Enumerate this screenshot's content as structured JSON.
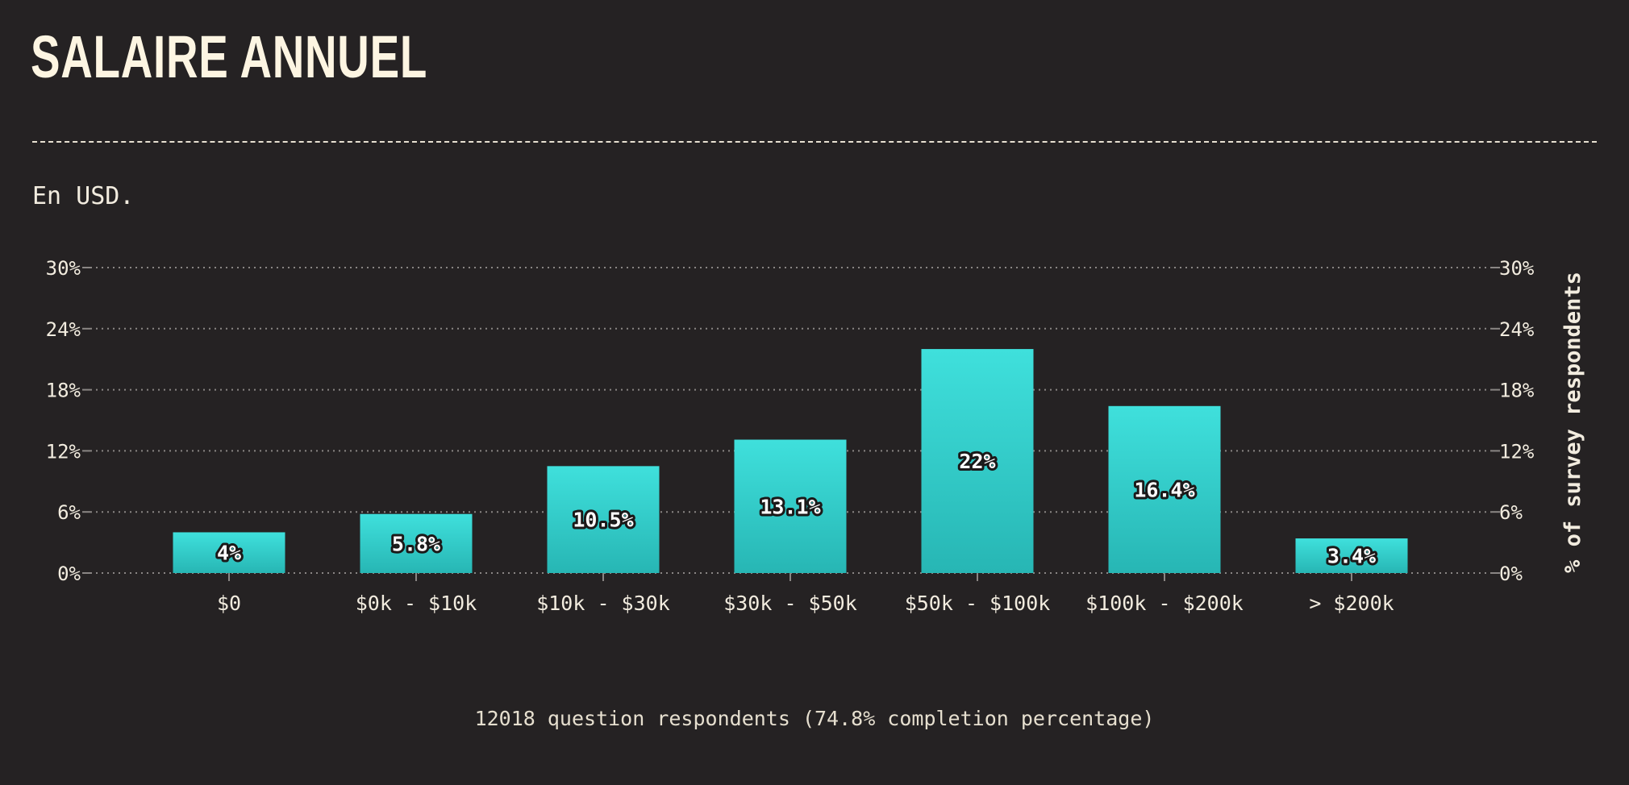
{
  "page": {
    "title": "SALAIRE ANNUEL",
    "subtitle": "En USD.",
    "footer": "12018 question respondents (74.8% completion percentage)"
  },
  "colors": {
    "background": "#252223",
    "bar_top": "#3fe0dc",
    "bar_bottom": "#27b6b4",
    "text": "#f2ecdf",
    "title": "#fdf5e2",
    "grid": "#8a8684"
  },
  "chart_data": {
    "type": "bar",
    "categories": [
      "$0",
      "$0k - $10k",
      "$10k - $30k",
      "$30k - $50k",
      "$50k - $100k",
      "$100k - $200k",
      "> $200k"
    ],
    "values": [
      4,
      5.8,
      10.5,
      13.1,
      22,
      16.4,
      3.4
    ],
    "data_labels": [
      "4%",
      "5.8%",
      "10.5%",
      "13.1%",
      "22%",
      "16.4%",
      "3.4%"
    ],
    "ylim": [
      0,
      30
    ],
    "yticks": [
      0,
      6,
      12,
      18,
      24,
      30
    ],
    "ytick_labels": [
      "0%",
      "6%",
      "12%",
      "18%",
      "24%",
      "30%"
    ],
    "ylabel": "% of survey respondents",
    "xlabel": "",
    "grid": true,
    "grid_style": "dotted horizontal",
    "axes": "left and right"
  }
}
